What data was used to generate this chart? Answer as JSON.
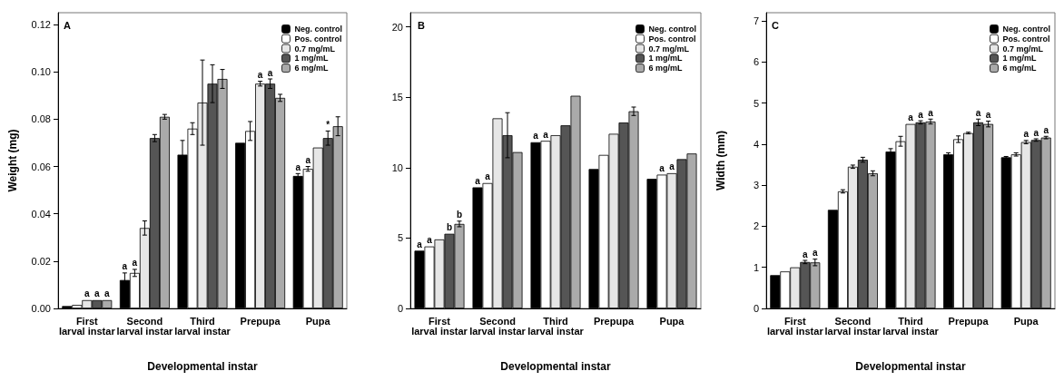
{
  "chart_data": [
    {
      "type": "bar",
      "title": "A",
      "xlabel": "Developmental instar",
      "ylabel": "Weight (mg)",
      "categories": [
        "First\nlarval instar",
        "Second\nlarval instar",
        "Third\nlarval instar",
        "Prepupa",
        "Pupa"
      ],
      "ylim": [
        0,
        0.125
      ],
      "yticks": [
        {
          "value": 0,
          "label": "0.00"
        },
        {
          "value": 0.02,
          "label": "0.02"
        },
        {
          "value": 0.04,
          "label": "0.04"
        },
        {
          "value": 0.06,
          "label": "0.06"
        },
        {
          "value": 0.08,
          "label": "0.08"
        },
        {
          "value": 0.1,
          "label": "0.10"
        },
        {
          "value": 0.12,
          "label": "0.12"
        }
      ],
      "legend": "top right",
      "grid": false,
      "series": [
        {
          "name": "Neg. control",
          "color": "#000000",
          "values": [
            0.001,
            0.012,
            0.065,
            0.07,
            0.056
          ],
          "errors": [
            null,
            0.003,
            0.006,
            null,
            0.001
          ],
          "value_labels": [
            null,
            "a",
            null,
            null,
            "a"
          ]
        },
        {
          "name": "Pos. control",
          "color": "#ffffff",
          "values": [
            0.0015,
            0.015,
            0.076,
            0.075,
            0.059
          ],
          "errors": [
            null,
            0.0015,
            0.0025,
            0.004,
            0.001
          ],
          "value_labels": [
            null,
            "a",
            null,
            null,
            "a"
          ]
        },
        {
          "name": "0.7 mg/mL",
          "color": "#e6e6e6",
          "values": [
            0.0035,
            0.034,
            0.087,
            0.095,
            0.068
          ],
          "errors": [
            null,
            0.003,
            0.018,
            0.001,
            null
          ],
          "value_labels": [
            "a",
            null,
            null,
            "a",
            null
          ]
        },
        {
          "name": "1 mg/mL",
          "color": "#555555",
          "values": [
            0.0035,
            0.072,
            0.095,
            0.095,
            0.072
          ],
          "errors": [
            null,
            0.0015,
            0.008,
            0.002,
            0.003
          ],
          "value_labels": [
            "a",
            null,
            null,
            "a",
            "*"
          ]
        },
        {
          "name": "6 mg/mL",
          "color": "#aaaaaa",
          "values": [
            0.0035,
            0.081,
            0.097,
            0.089,
            0.077
          ],
          "errors": [
            null,
            0.001,
            0.004,
            0.0015,
            0.004
          ],
          "value_labels": [
            "a",
            null,
            null,
            null,
            null
          ]
        }
      ]
    },
    {
      "type": "bar",
      "title": "B",
      "xlabel": "Developmental instar",
      "categories": [
        "First\nlarval instar",
        "Second\nlarval instar",
        "Third\nlarval instar",
        "Prepupa",
        "Pupa"
      ],
      "ylim": [
        0,
        21
      ],
      "yticks": [
        0,
        5,
        10,
        15,
        20
      ],
      "legend": "top right",
      "grid": false,
      "series": [
        {
          "name": "Neg. control",
          "color": "#000000",
          "values": [
            4.1,
            8.6,
            11.8,
            9.9,
            9.2
          ],
          "value_labels": [
            "a",
            "a",
            "a",
            null,
            null
          ]
        },
        {
          "name": "Pos. control",
          "color": "#ffffff",
          "values": [
            4.4,
            8.9,
            11.9,
            10.9,
            9.5
          ],
          "value_labels": [
            "a",
            "a",
            "a",
            null,
            "a"
          ]
        },
        {
          "name": "0.7 mg/mL",
          "color": "#e6e6e6",
          "values": [
            4.9,
            13.5,
            12.3,
            12.4,
            9.6
          ],
          "value_labels": [
            null,
            null,
            null,
            null,
            "a"
          ]
        },
        {
          "name": "1 mg/mL",
          "color": "#555555",
          "values": [
            5.3,
            12.3,
            13.0,
            13.2,
            10.6
          ],
          "errors": [
            null,
            1.6,
            null,
            null,
            null
          ],
          "value_labels": [
            "b",
            null,
            null,
            null,
            null
          ]
        },
        {
          "name": "6 mg/mL",
          "color": "#aaaaaa",
          "values": [
            6.0,
            11.1,
            15.1,
            14.0,
            11.0
          ],
          "errors": [
            0.2,
            null,
            null,
            0.3,
            null
          ],
          "value_labels": [
            "b",
            null,
            null,
            null,
            null
          ]
        }
      ]
    },
    {
      "type": "bar",
      "title": "C",
      "xlabel": "Developmental instar",
      "ylabel": "Width (mm)",
      "categories": [
        "First\nlarval instar",
        "Second\nlarval instar",
        "Third\nlarval instar",
        "Prepupa",
        "Pupa"
      ],
      "ylim": [
        0,
        7.2
      ],
      "yticks": [
        0,
        1,
        2,
        3,
        4,
        5,
        6,
        7
      ],
      "legend": "top right",
      "grid": false,
      "series": [
        {
          "name": "Neg. control",
          "color": "#000000",
          "values": [
            0.81,
            2.4,
            3.82,
            3.75,
            3.68
          ],
          "errors": [
            null,
            null,
            0.07,
            0.04,
            0.02
          ],
          "value_labels": [
            null,
            null,
            null,
            null,
            null
          ]
        },
        {
          "name": "Pos. control",
          "color": "#ffffff",
          "values": [
            0.9,
            2.85,
            4.07,
            4.12,
            3.75
          ],
          "errors": [
            null,
            0.04,
            0.12,
            0.08,
            0.04
          ],
          "value_labels": [
            null,
            null,
            null,
            null,
            null
          ]
        },
        {
          "name": "0.7 mg/mL",
          "color": "#e6e6e6",
          "values": [
            1.0,
            3.45,
            4.49,
            4.27,
            4.05
          ],
          "errors": [
            null,
            0.04,
            null,
            0.02,
            0.04
          ],
          "value_labels": [
            null,
            null,
            "a",
            null,
            "a"
          ]
        },
        {
          "name": "1 mg/mL",
          "color": "#555555",
          "values": [
            1.13,
            3.62,
            4.53,
            4.53,
            4.1
          ],
          "errors": [
            0.04,
            0.06,
            0.04,
            0.08,
            0.03
          ],
          "value_labels": [
            "a",
            null,
            "a",
            "a",
            "a"
          ]
        },
        {
          "name": "6 mg/mL",
          "color": "#aaaaaa",
          "values": [
            1.12,
            3.29,
            4.55,
            4.49,
            4.16
          ],
          "errors": [
            0.08,
            0.06,
            0.06,
            0.07,
            0.03
          ],
          "value_labels": [
            "a",
            null,
            "a",
            "a",
            "a"
          ]
        }
      ]
    }
  ]
}
